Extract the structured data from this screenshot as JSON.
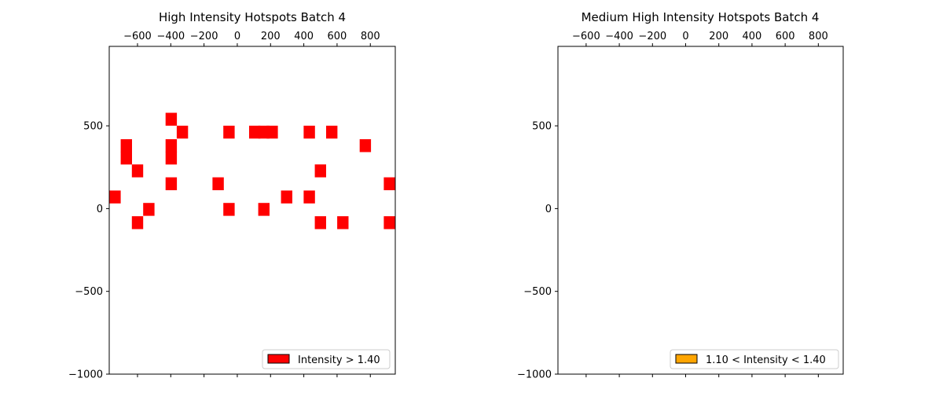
{
  "chart_data": [
    {
      "type": "heatmap",
      "title": "High Intensity Hotspots Batch 4",
      "xlabel": "",
      "ylabel": "",
      "xlim": [
        -770,
        950
      ],
      "ylim": [
        -1000,
        980
      ],
      "x_axis_position": "top",
      "x_ticks": [
        -600,
        -400,
        -200,
        0,
        200,
        400,
        600,
        800
      ],
      "x_tick_labels": [
        "−600",
        "−400",
        "−200",
        "0",
        "200",
        "400",
        "600",
        "800"
      ],
      "y_ticks": [
        500,
        0,
        -500,
        -1000
      ],
      "y_tick_labels": [
        "500",
        "0",
        "−500",
        "−1000"
      ],
      "grid": false,
      "legend_position": "lower-right",
      "legend": [
        {
          "label": "Intensity > 1.40",
          "color": "#ff0000"
        }
      ],
      "cell_size": [
        68,
        78
      ],
      "cell_color": "#ff0000",
      "cells": [
        {
          "x": -735,
          "y": 70
        },
        {
          "x": -667,
          "y": 380
        },
        {
          "x": -667,
          "y": 305
        },
        {
          "x": -600,
          "y": 228
        },
        {
          "x": -600,
          "y": -85
        },
        {
          "x": -532,
          "y": -5
        },
        {
          "x": -397,
          "y": 540
        },
        {
          "x": -397,
          "y": 380
        },
        {
          "x": -397,
          "y": 305
        },
        {
          "x": -397,
          "y": 150
        },
        {
          "x": -330,
          "y": 462
        },
        {
          "x": -115,
          "y": 150
        },
        {
          "x": -50,
          "y": 462
        },
        {
          "x": -50,
          "y": -5
        },
        {
          "x": 105,
          "y": 462
        },
        {
          "x": 160,
          "y": 462
        },
        {
          "x": 210,
          "y": 462
        },
        {
          "x": 160,
          "y": -5
        },
        {
          "x": 297,
          "y": 70
        },
        {
          "x": 433,
          "y": 462
        },
        {
          "x": 433,
          "y": 70
        },
        {
          "x": 500,
          "y": 228
        },
        {
          "x": 500,
          "y": -85
        },
        {
          "x": 568,
          "y": 462
        },
        {
          "x": 635,
          "y": -85
        },
        {
          "x": 770,
          "y": 380
        },
        {
          "x": 915,
          "y": 150
        },
        {
          "x": 915,
          "y": -85
        }
      ]
    },
    {
      "type": "heatmap",
      "title": "Medium High Intensity Hotspots Batch 4",
      "xlabel": "",
      "ylabel": "",
      "xlim": [
        -770,
        950
      ],
      "ylim": [
        -1000,
        980
      ],
      "x_axis_position": "top",
      "x_ticks": [
        -600,
        -400,
        -200,
        0,
        200,
        400,
        600,
        800
      ],
      "x_tick_labels": [
        "−600",
        "−400",
        "−200",
        "0",
        "200",
        "400",
        "600",
        "800"
      ],
      "y_ticks": [
        500,
        0,
        -500,
        -1000
      ],
      "y_tick_labels": [
        "500",
        "0",
        "−500",
        "−1000"
      ],
      "grid": false,
      "legend_position": "lower-right",
      "legend": [
        {
          "label": "1.10 < Intensity < 1.40",
          "color": "#ffa500"
        }
      ],
      "cell_size": [
        68,
        78
      ],
      "cell_color": "#ffa500",
      "cells": []
    }
  ]
}
